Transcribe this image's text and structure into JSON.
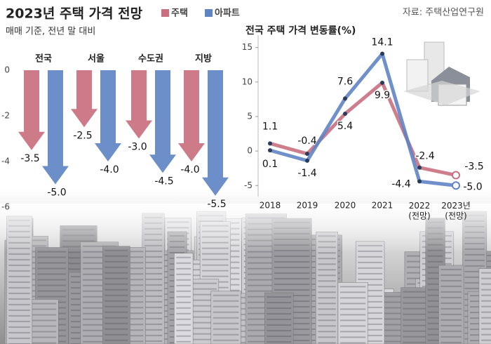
{
  "source": "자료: 주택산업연구원",
  "chart_data": [
    {
      "type": "arrow-bar",
      "title": "2023년 주택 가격 전망",
      "subtitle": "매매 기준, 전년 말 대비",
      "categories": [
        "전국",
        "서울",
        "수도권",
        "지방"
      ],
      "series": [
        {
          "name": "주택",
          "color": "#c96f7f",
          "values": [
            -3.5,
            -2.5,
            -3.0,
            -4.0
          ],
          "value_labels": [
            "-3.5",
            "-2.5",
            "-3.0",
            "-4.0"
          ]
        },
        {
          "name": "아파트",
          "color": "#5f84c4",
          "values": [
            -5.0,
            -4.0,
            -4.5,
            -5.5
          ],
          "value_labels": [
            "-5.0",
            "-4.0",
            "-4.5",
            "-5.5"
          ]
        }
      ],
      "ylim": [
        -6,
        0
      ],
      "yticks": [
        0,
        -2,
        -4,
        -6
      ],
      "grid": false
    },
    {
      "type": "line",
      "title": "전국 주택 가격 변동률(%)",
      "categories": [
        "2018",
        "2019",
        "2020",
        "2021",
        "2022\n(전망)",
        "2023년\n(전망)"
      ],
      "series": [
        {
          "name": "주택",
          "color": "#c96f7f",
          "values": [
            1.1,
            -0.4,
            5.4,
            9.9,
            -2.4,
            -3.5
          ],
          "value_labels": [
            "1.1",
            "-0.4",
            "5.4",
            "9.9",
            "-2.4",
            "-3.5"
          ]
        },
        {
          "name": "아파트",
          "color": "#5f84c4",
          "values": [
            0.1,
            -1.4,
            7.6,
            14.1,
            -4.4,
            -5.0
          ],
          "value_labels": [
            "0.1",
            "-1.4",
            "7.6",
            "14.1",
            "-4.4",
            "-5.0"
          ]
        }
      ],
      "ylim": [
        -6.6,
        16.8
      ],
      "yticks": [
        15,
        10,
        5,
        0,
        -5
      ],
      "grid": false
    }
  ]
}
